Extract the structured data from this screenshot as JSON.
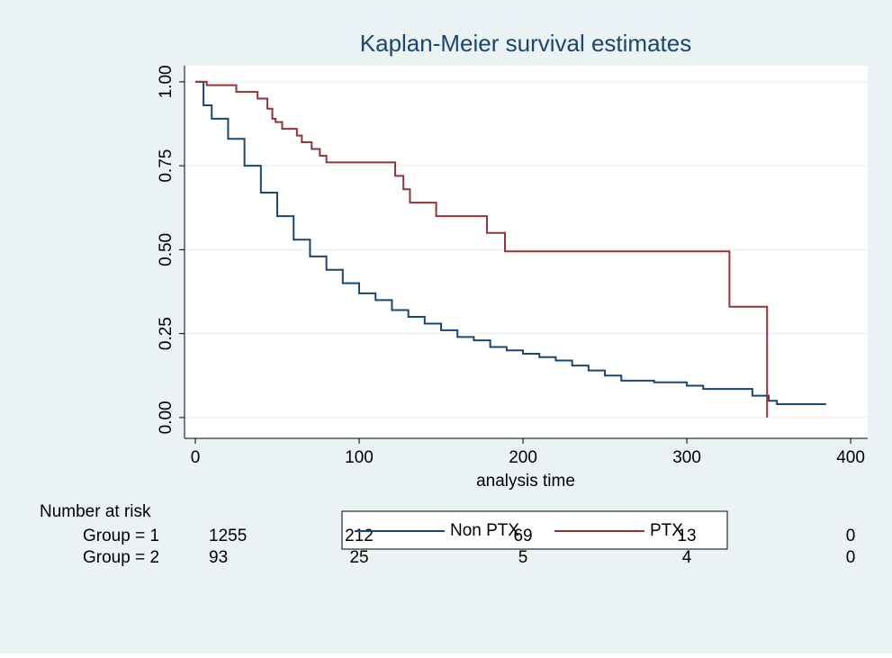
{
  "chart_data": {
    "type": "line",
    "drawstyle": "steps-post",
    "title": "Kaplan-Meier survival estimates",
    "x_label": "analysis time",
    "xlim": [
      -6.6,
      410.4
    ],
    "ylim": [
      -0.062,
      1.048
    ],
    "xticks": [
      0,
      100,
      200,
      300,
      400
    ],
    "yticks": [
      {
        "value": 0,
        "label": "0.00"
      },
      {
        "value": 0.25,
        "label": "0.25"
      },
      {
        "value": 0.5,
        "label": "0.50"
      },
      {
        "value": 0.75,
        "label": "0.75"
      },
      {
        "value": 1,
        "label": "1.00"
      }
    ],
    "grid": true,
    "series": [
      {
        "name": "Non PTX",
        "color": "#1a476f",
        "x": [
          0,
          5,
          10,
          20,
          30,
          40,
          50,
          60,
          70,
          80,
          90,
          100,
          110,
          120,
          130,
          140,
          150,
          160,
          170,
          180,
          190,
          200,
          210,
          220,
          230,
          240,
          250,
          260,
          280,
          300,
          310,
          340,
          350,
          355,
          385
        ],
        "values": [
          1.0,
          0.93,
          0.89,
          0.83,
          0.75,
          0.67,
          0.6,
          0.53,
          0.48,
          0.44,
          0.4,
          0.37,
          0.35,
          0.32,
          0.3,
          0.28,
          0.26,
          0.24,
          0.23,
          0.21,
          0.2,
          0.19,
          0.18,
          0.17,
          0.155,
          0.14,
          0.125,
          0.11,
          0.105,
          0.095,
          0.085,
          0.065,
          0.05,
          0.04,
          0.04
        ]
      },
      {
        "name": "PTX",
        "color": "#90353b",
        "x": [
          0,
          7,
          25,
          38,
          44,
          47,
          49,
          53,
          62,
          65,
          71,
          76,
          80,
          122,
          127,
          131,
          147,
          178,
          189,
          326,
          349
        ],
        "values": [
          1.0,
          0.99,
          0.97,
          0.95,
          0.92,
          0.89,
          0.88,
          0.86,
          0.84,
          0.82,
          0.8,
          0.78,
          0.76,
          0.72,
          0.68,
          0.64,
          0.6,
          0.55,
          0.495,
          0.33,
          0.0
        ]
      }
    ],
    "risk_table": {
      "title": "Number at risk",
      "rows": [
        {
          "label": "Group = 1",
          "values": [
            1255,
            212,
            69,
            13,
            0
          ]
        },
        {
          "label": "Group = 2",
          "values": [
            93,
            25,
            5,
            4,
            0
          ]
        }
      ]
    },
    "legend_position": "bottom"
  }
}
